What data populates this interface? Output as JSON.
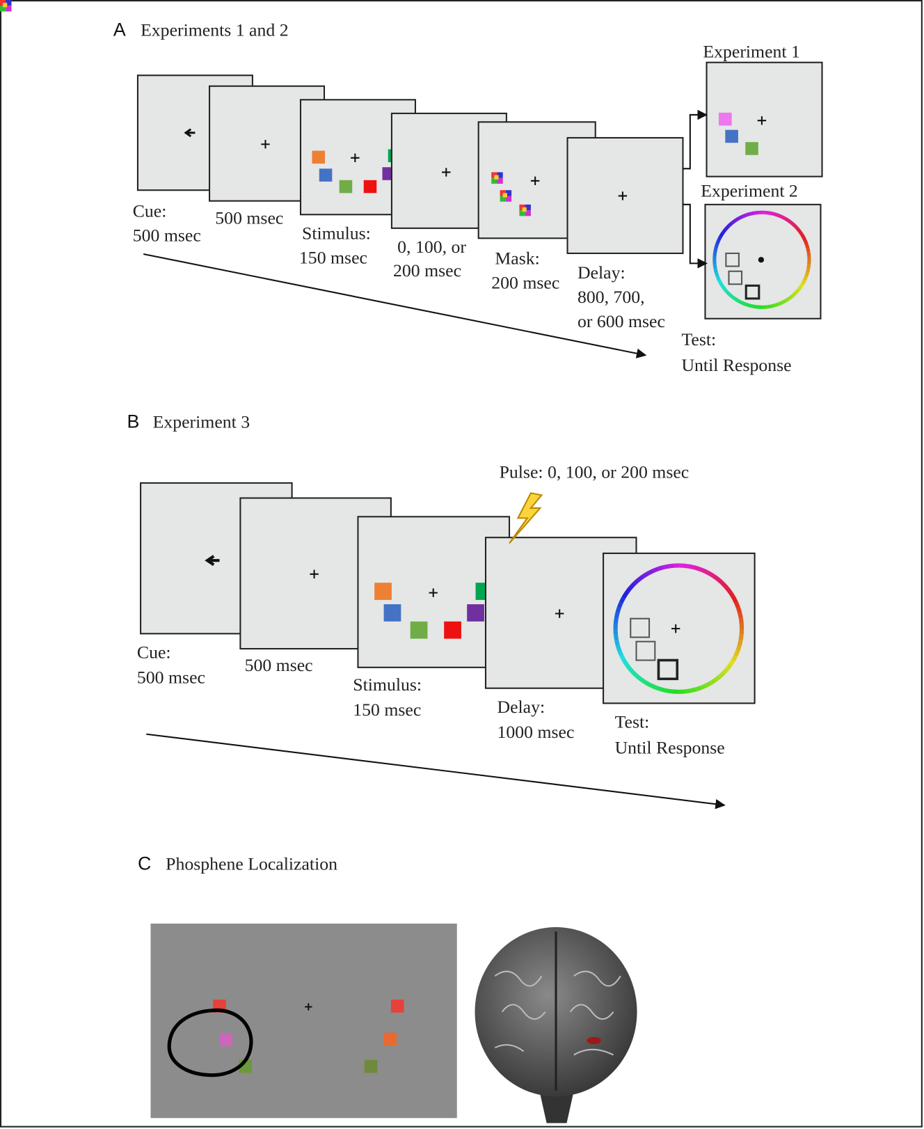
{
  "panel_a": {
    "label": "A",
    "title": "Experiments 1 and 2",
    "captions": [
      [
        "Cue:",
        "500 msec"
      ],
      [
        "500 msec"
      ],
      [
        "Stimulus:",
        "150 msec"
      ],
      [
        "0, 100, or",
        "200 msec"
      ],
      [
        "Mask:",
        "200 msec"
      ],
      [
        "Delay:",
        "800, 700,",
        "or 600 msec"
      ],
      [
        "Test:",
        "Until Response"
      ]
    ],
    "experiment_1_label": "Experiment 1",
    "experiment_2_label": "Experiment 2"
  },
  "panel_b": {
    "label": "B",
    "title": "Experiment 3",
    "pulse_label": "Pulse: 0, 100, or 200 msec",
    "captions": [
      [
        "Cue:",
        "500 msec"
      ],
      [
        "500 msec"
      ],
      [
        "Stimulus:",
        "150 msec"
      ],
      [
        "Delay:",
        "1000 msec"
      ],
      [
        "Test:",
        "Until Response"
      ]
    ]
  },
  "panel_c": {
    "label": "C",
    "title": "Phosphene Localization"
  }
}
